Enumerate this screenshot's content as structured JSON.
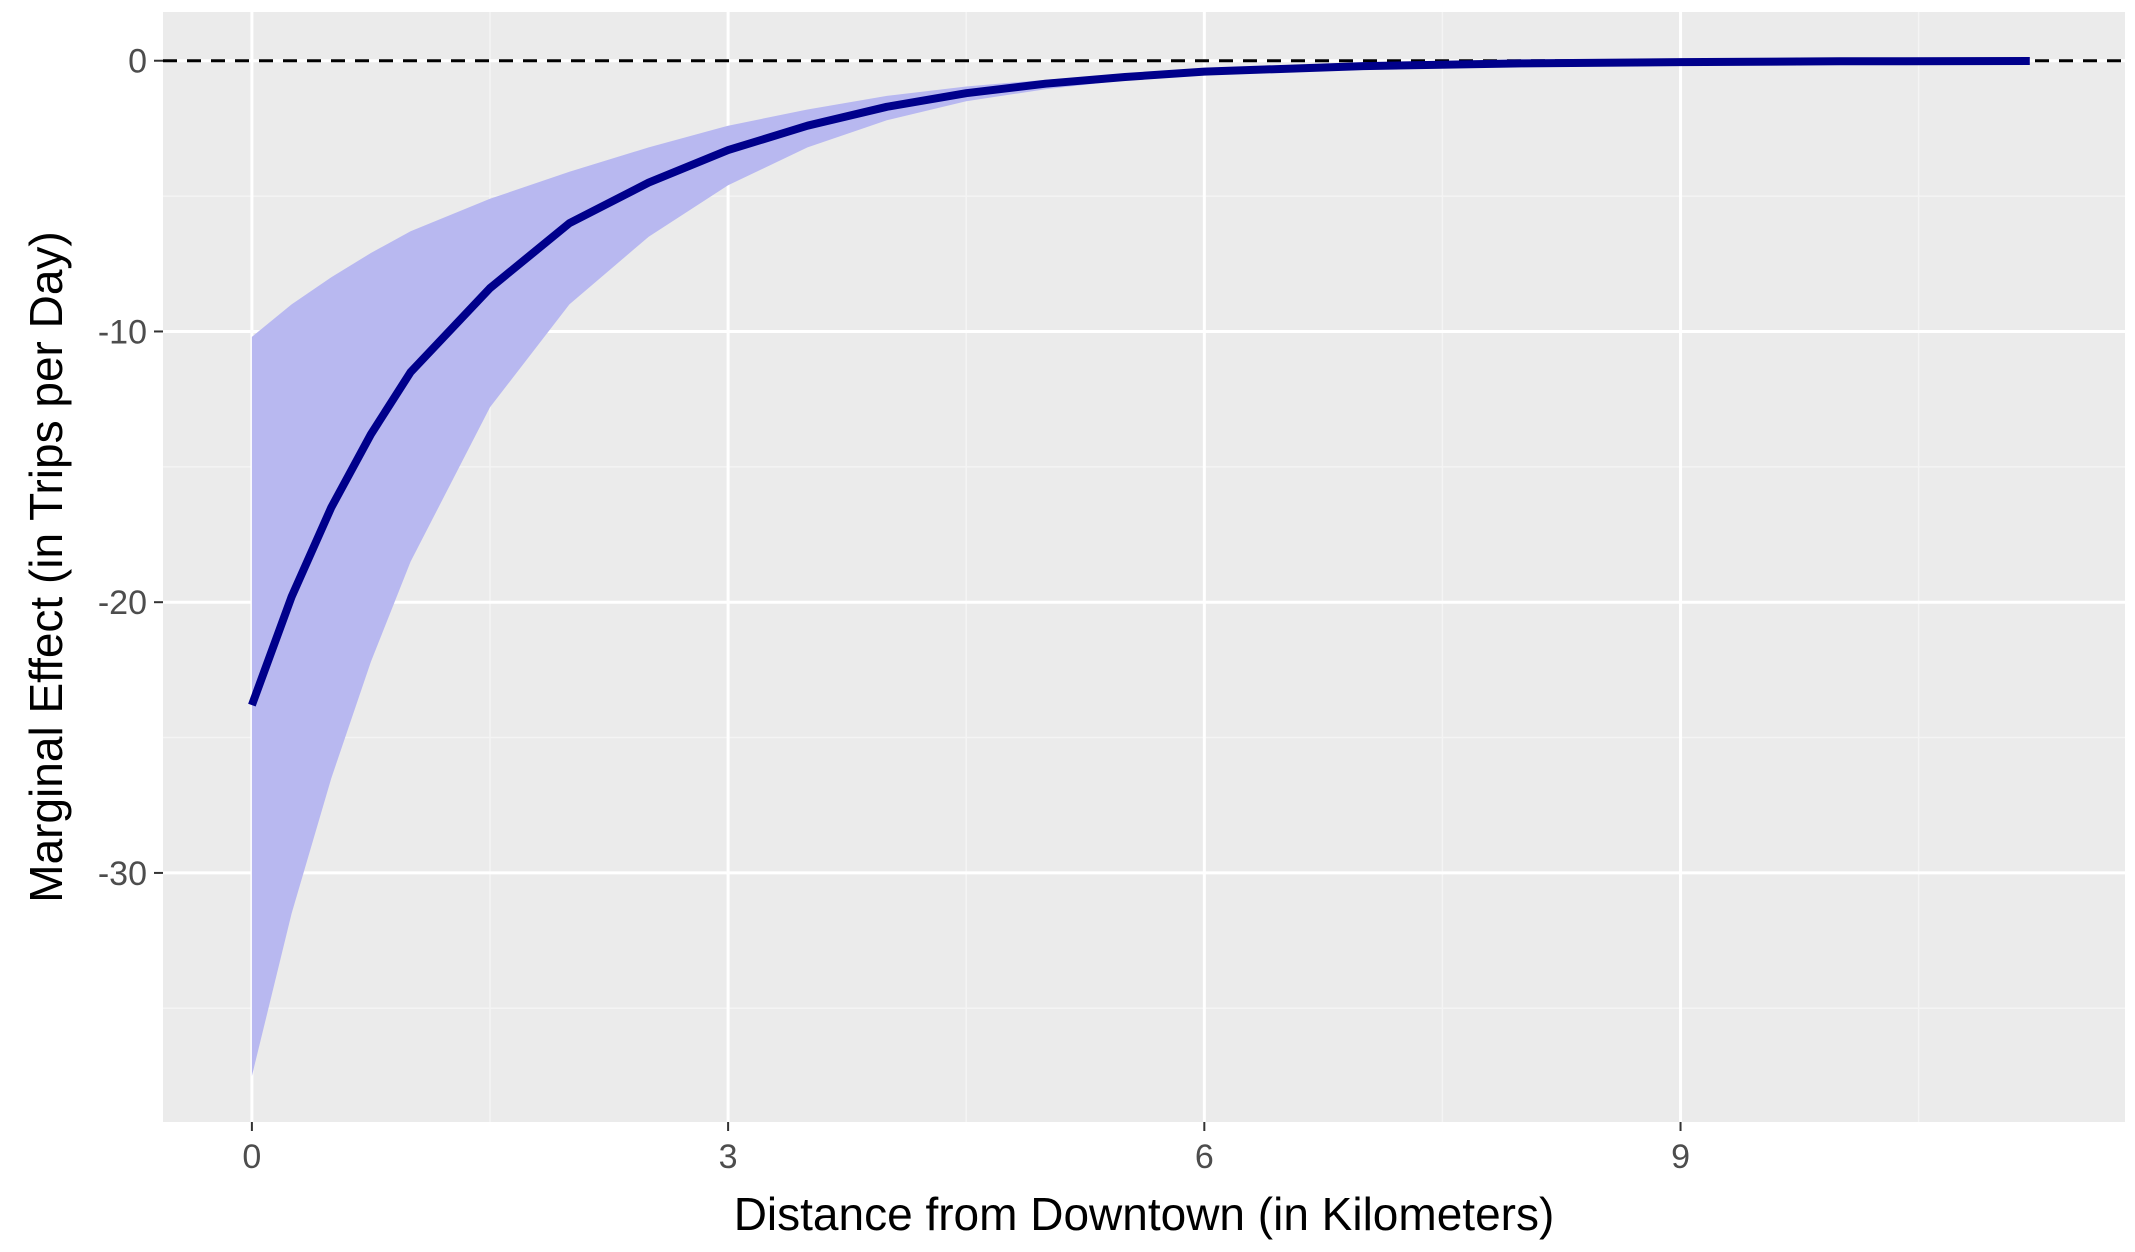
{
  "chart_data": {
    "type": "line",
    "title": "",
    "xlabel": "Distance from Downtown (in Kilometers)",
    "ylabel": "Marginal Effect (in Trips per Day)",
    "xlim": [
      -0.56,
      11.8
    ],
    "ylim": [
      -39.2,
      1.8
    ],
    "x_ticks": [
      0,
      3,
      6,
      9
    ],
    "x_tick_labels": [
      "0",
      "3",
      "6",
      "9"
    ],
    "y_ticks": [
      0,
      -10,
      -20,
      -30
    ],
    "y_tick_labels": [
      "0",
      "-10",
      "-20",
      "-30"
    ],
    "grid": true,
    "legend": "none",
    "reference_line": {
      "y": 0,
      "style": "dashed",
      "color": "#000000"
    },
    "series": [
      {
        "x": [
          0,
          0.25,
          0.5,
          0.75,
          1,
          1.5,
          2,
          2.5,
          3,
          3.5,
          4,
          4.5,
          5,
          5.5,
          6,
          7,
          8,
          9,
          10,
          11.2
        ],
        "y": [
          -23.8,
          -19.8,
          -16.5,
          -13.8,
          -11.5,
          -8.4,
          -6.0,
          -4.5,
          -3.3,
          -2.4,
          -1.7,
          -1.2,
          -0.85,
          -0.6,
          -0.4,
          -0.2,
          -0.1,
          -0.05,
          -0.02,
          -0.01
        ],
        "lower": [
          -37.5,
          -31.5,
          -26.5,
          -22.2,
          -18.5,
          -12.8,
          -9.0,
          -6.5,
          -4.6,
          -3.2,
          -2.2,
          -1.5,
          -1.05,
          -0.72,
          -0.5,
          -0.25,
          -0.12,
          -0.06,
          -0.03,
          -0.01
        ],
        "upper": [
          -10.2,
          -9.0,
          -8.0,
          -7.1,
          -6.3,
          -5.1,
          -4.1,
          -3.2,
          -2.4,
          -1.8,
          -1.3,
          -0.95,
          -0.7,
          -0.5,
          -0.34,
          -0.17,
          -0.08,
          -0.04,
          -0.02,
          -0.01
        ],
        "line_color": "#00008b",
        "ribbon_color": "#b8b8f0"
      }
    ],
    "colors": {
      "panel_background": "#ebebeb",
      "grid_major": "#ffffff",
      "grid_minor": "#f4f4f4",
      "tick_label": "#4d4d4d",
      "axis_title": "#000000"
    }
  }
}
